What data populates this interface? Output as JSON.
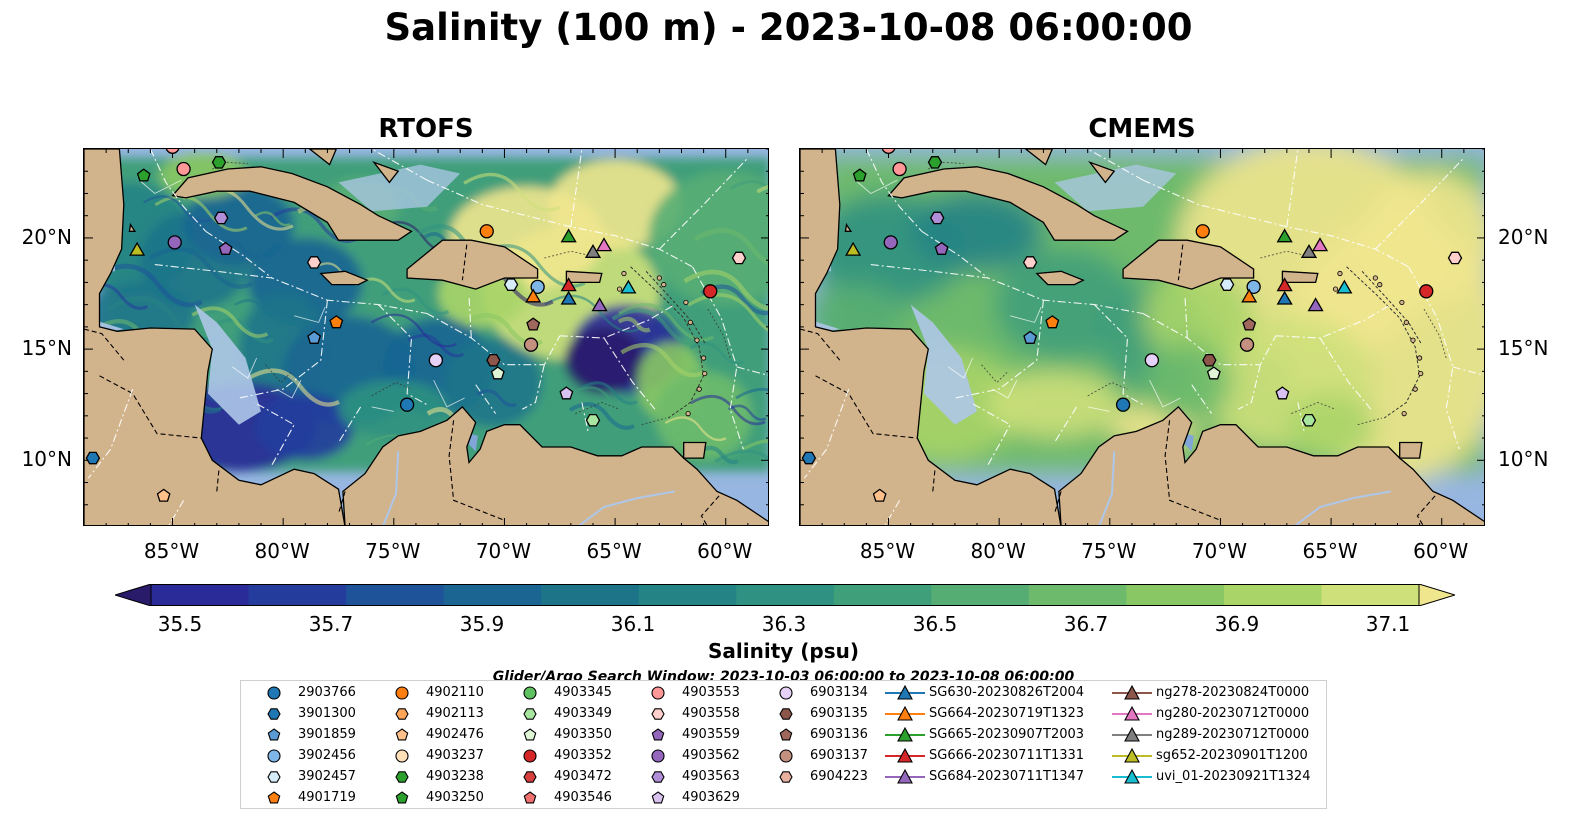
{
  "title": "Salinity (100 m) - 2023-10-08 06:00:00",
  "panels": [
    {
      "title": "RTOFS"
    },
    {
      "title": "CMEMS"
    }
  ],
  "map": {
    "lon_range": [
      -89,
      -58
    ],
    "lat_range": [
      7,
      24
    ],
    "x_ticks": [
      "85°W",
      "80°W",
      "75°W",
      "70°W",
      "65°W",
      "60°W"
    ],
    "y_ticks": [
      "20°N",
      "15°N",
      "10°N"
    ],
    "colors": {
      "ocean": "#97b6e1",
      "land": "#d2b48c"
    }
  },
  "colorbar": {
    "label": "Salinity (psu)",
    "ticks": [
      "35.5",
      "35.7",
      "35.9",
      "36.1",
      "36.3",
      "36.5",
      "36.7",
      "36.9",
      "37.1"
    ],
    "colors": [
      "#2a1a6a",
      "#2a2a98",
      "#243d9c",
      "#1e539a",
      "#1a6592",
      "#1d7489",
      "#248385",
      "#2f9181",
      "#3f9f7a",
      "#56ad73",
      "#6dba6c",
      "#88c763",
      "#a8d468",
      "#cde07a",
      "#f0e68e"
    ]
  },
  "search_window": "Glider/Argo Search Window: 2023-10-03 06:00:00 to 2023-10-08 06:00:00",
  "legend": {
    "columns": [
      [
        {
          "label": "2903766",
          "shape": "circle",
          "color": "#1f77b4"
        },
        {
          "label": "3901300",
          "shape": "hexagon",
          "color": "#1f77b4"
        },
        {
          "label": "3901859",
          "shape": "pentagon",
          "color": "#5a9bd5"
        },
        {
          "label": "3902456",
          "shape": "circle",
          "color": "#7fb6e8"
        },
        {
          "label": "3902457",
          "shape": "hexagon",
          "color": "#d6ecf8"
        },
        {
          "label": "4901719",
          "shape": "pentagon",
          "color": "#ff7f0e"
        }
      ],
      [
        {
          "label": "4902110",
          "shape": "circle",
          "color": "#ff7f0e"
        },
        {
          "label": "4902113",
          "shape": "hexagon",
          "color": "#ffa55a"
        },
        {
          "label": "4902476",
          "shape": "pentagon",
          "color": "#ffc08a"
        },
        {
          "label": "4903237",
          "shape": "circle",
          "color": "#ffe0b8"
        },
        {
          "label": "4903238",
          "shape": "hexagon",
          "color": "#2ca02c"
        },
        {
          "label": "4903250",
          "shape": "pentagon",
          "color": "#2ca02c"
        }
      ],
      [
        {
          "label": "4903345",
          "shape": "circle",
          "color": "#5fc15f"
        },
        {
          "label": "4903349",
          "shape": "hexagon",
          "color": "#a8e6a0"
        },
        {
          "label": "4903350",
          "shape": "pentagon",
          "color": "#dff5d6"
        },
        {
          "label": "4903352",
          "shape": "circle",
          "color": "#d62728"
        },
        {
          "label": "4903472",
          "shape": "hexagon",
          "color": "#d84040"
        },
        {
          "label": "4903546",
          "shape": "pentagon",
          "color": "#f07070"
        }
      ],
      [
        {
          "label": "4903553",
          "shape": "circle",
          "color": "#ff9896"
        },
        {
          "label": "4903558",
          "shape": "hexagon",
          "color": "#ffd0cc"
        },
        {
          "label": "4903559",
          "shape": "pentagon",
          "color": "#9467bd"
        },
        {
          "label": "4903562",
          "shape": "circle",
          "color": "#9467bd"
        },
        {
          "label": "4903563",
          "shape": "hexagon",
          "color": "#b08fd8"
        },
        {
          "label": "4903629",
          "shape": "pentagon",
          "color": "#d8c2f0"
        }
      ],
      [
        {
          "label": "6903134",
          "shape": "circle",
          "color": "#e6d2f8"
        },
        {
          "label": "6903135",
          "shape": "hexagon",
          "color": "#8c564b"
        },
        {
          "label": "6903136",
          "shape": "pentagon",
          "color": "#a0685c"
        },
        {
          "label": "6903137",
          "shape": "circle",
          "color": "#c49080"
        },
        {
          "label": "6904223",
          "shape": "hexagon",
          "color": "#e8b0a0"
        }
      ],
      [
        {
          "label": "SG630-20230826T2004",
          "shape": "triangle",
          "color": "#1f77b4"
        },
        {
          "label": "SG664-20230719T1323",
          "shape": "triangle",
          "color": "#ff7f0e"
        },
        {
          "label": "SG665-20230907T2003",
          "shape": "triangle",
          "color": "#2ca02c"
        },
        {
          "label": "SG666-20230711T1331",
          "shape": "triangle",
          "color": "#d62728"
        },
        {
          "label": "SG684-20230711T1347",
          "shape": "triangle",
          "color": "#9467bd"
        }
      ],
      [
        {
          "label": "ng278-20230824T0000",
          "shape": "triangle",
          "color": "#8c564b"
        },
        {
          "label": "ng280-20230712T0000",
          "shape": "triangle",
          "color": "#e377c2"
        },
        {
          "label": "ng289-20230712T0000",
          "shape": "triangle",
          "color": "#7f7f7f"
        },
        {
          "label": "sg652-20230901T1200",
          "shape": "triangle",
          "color": "#bcbd22"
        },
        {
          "label": "uvi_01-20230921T1324",
          "shape": "triangle",
          "color": "#17becf"
        }
      ]
    ]
  }
}
